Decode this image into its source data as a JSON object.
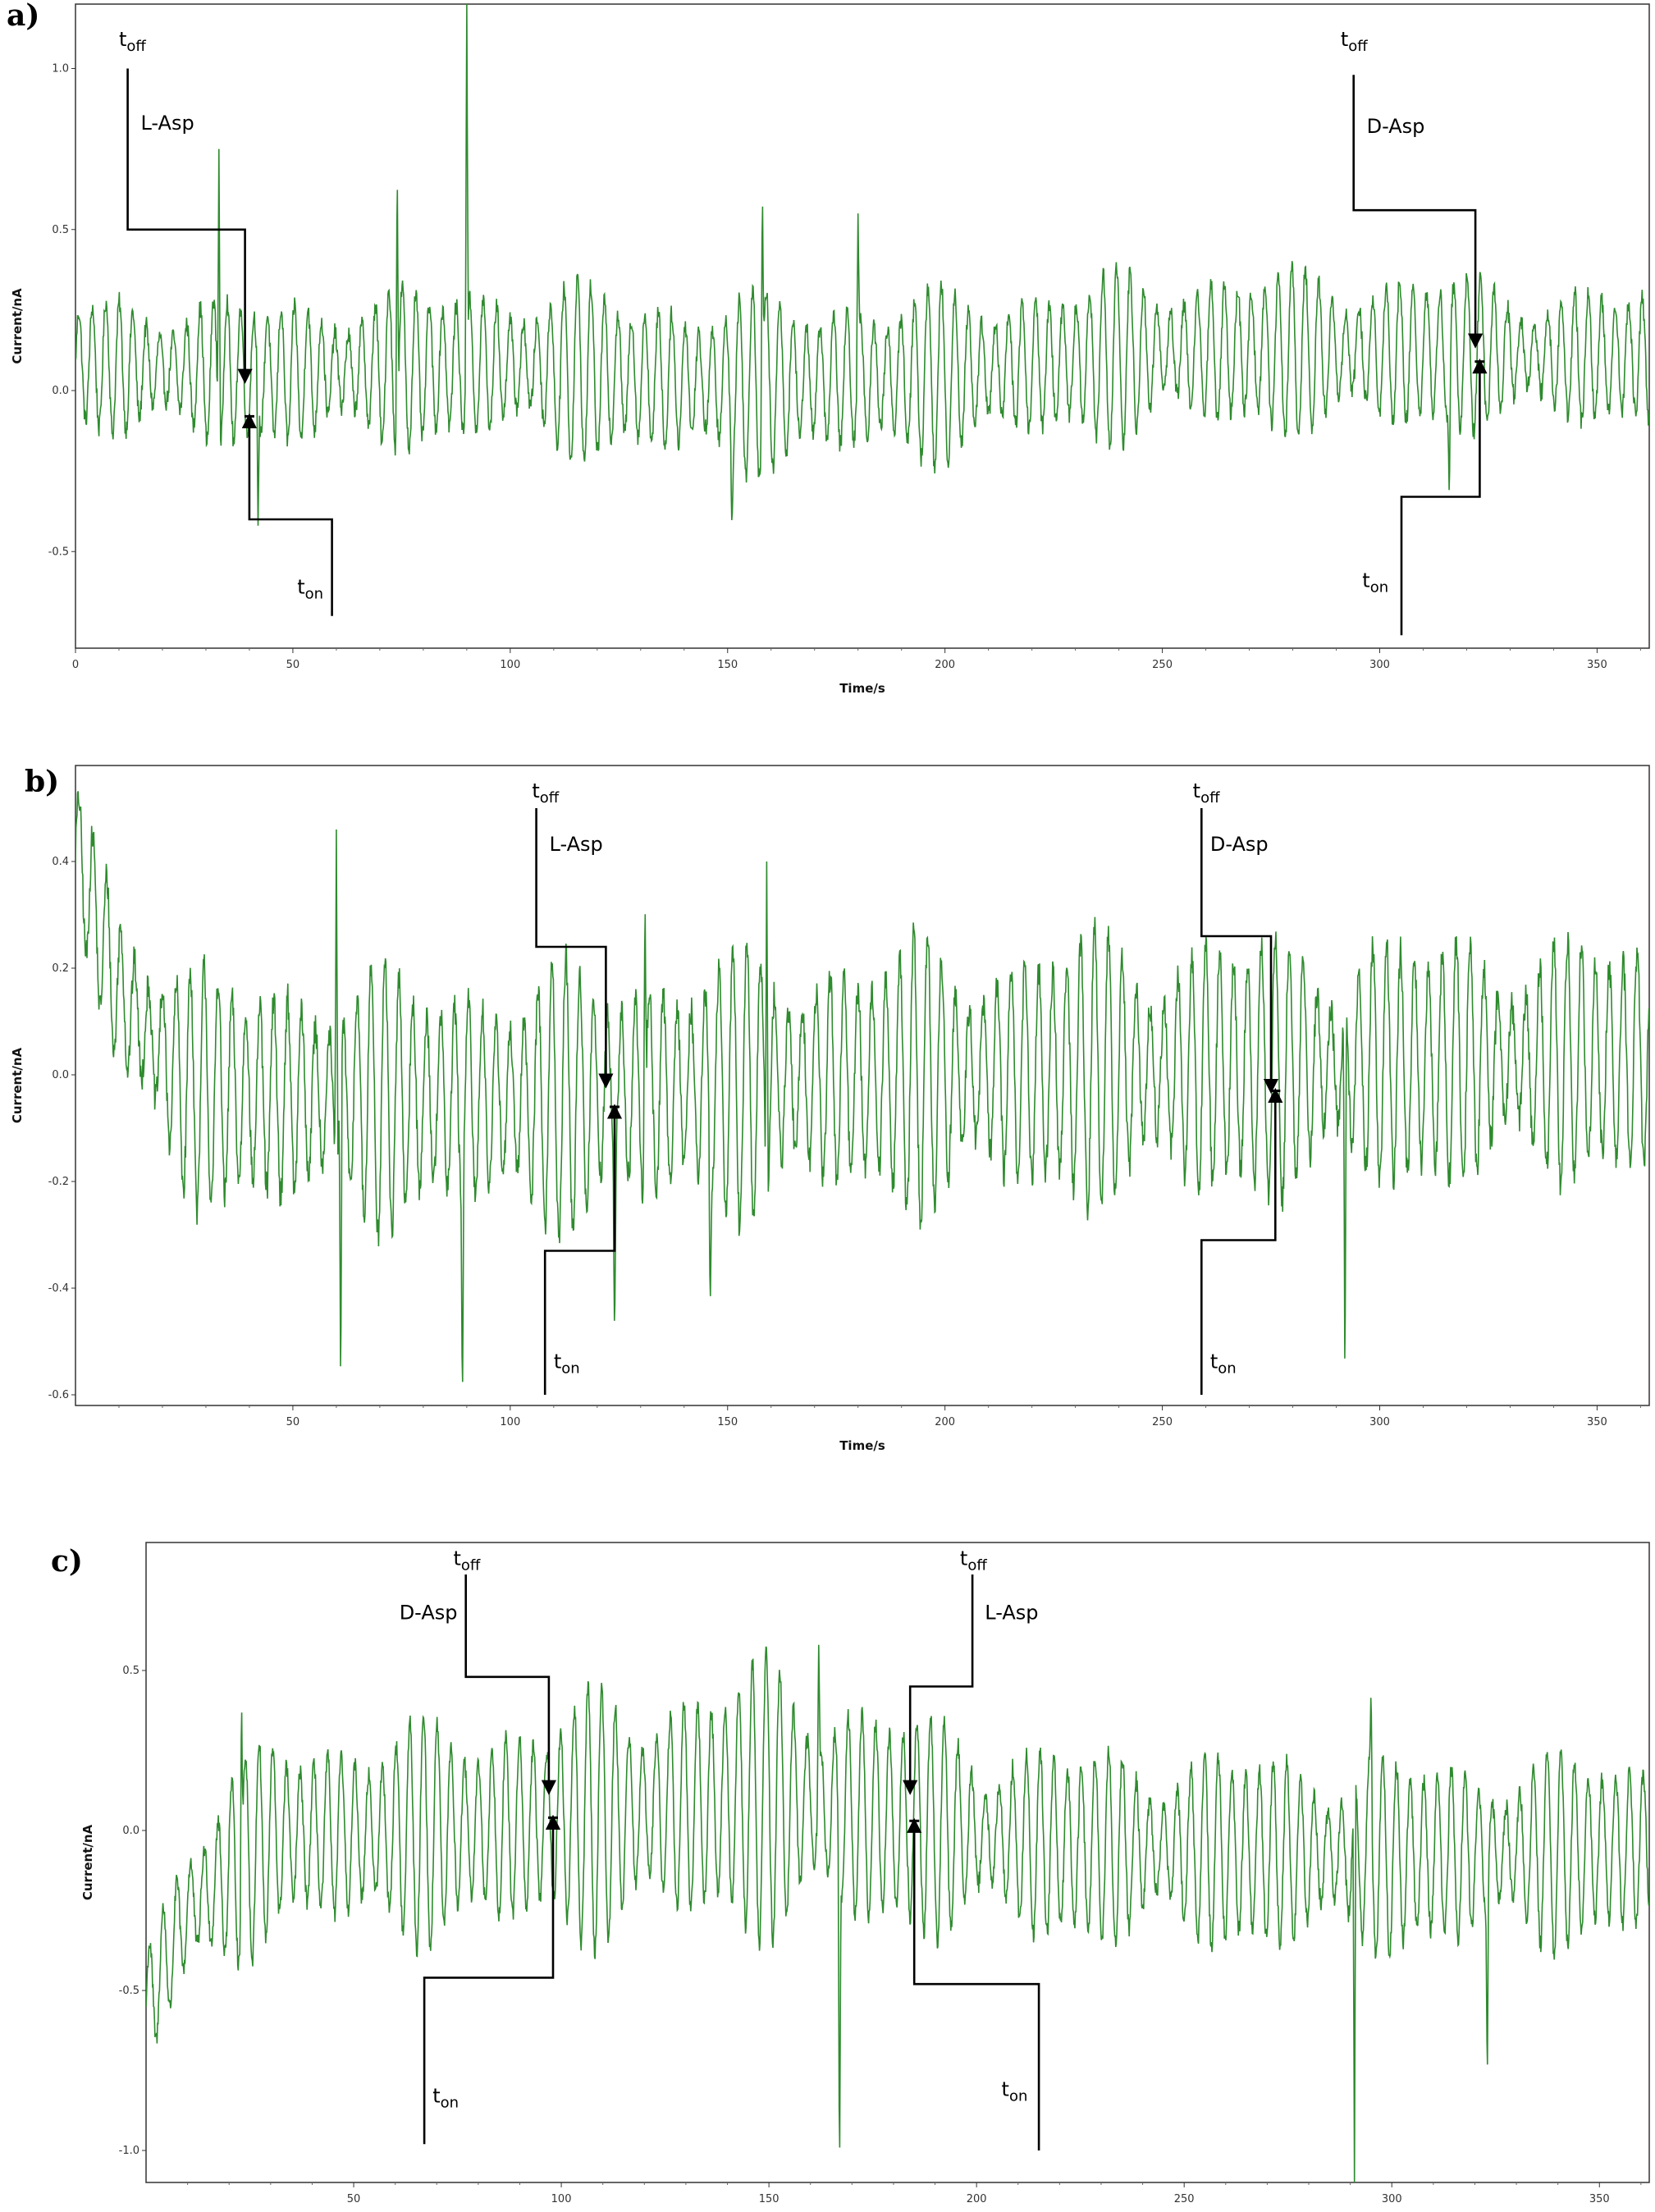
{
  "chart_data": [
    {
      "panel": "a)",
      "type": "line",
      "xlabel": "Time/s",
      "ylabel": "Current/nA",
      "xlim": [
        0,
        362
      ],
      "ylim": [
        -0.8,
        1.2
      ],
      "xticks": [
        "0",
        "50",
        "100",
        "150",
        "200",
        "250",
        "300",
        "350"
      ],
      "xtick_values": [
        0,
        50,
        100,
        150,
        200,
        250,
        300,
        350
      ],
      "yticks": [
        "1.0",
        "0.5",
        "0.0",
        "-0.5"
      ],
      "ytick_values": [
        1.0,
        0.5,
        0.0,
        -0.5
      ],
      "line_color": "#2e8b2e",
      "signal": {
        "period_s": 3.1,
        "baseline": [
          [
            0,
            0.08
          ],
          [
            40,
            0.05
          ],
          [
            100,
            0.08
          ],
          [
            150,
            0.02
          ],
          [
            200,
            0.05
          ],
          [
            250,
            0.12
          ],
          [
            300,
            0.12
          ],
          [
            362,
            0.1
          ]
        ],
        "amplitude": [
          [
            0,
            0.2
          ],
          [
            40,
            0.22
          ],
          [
            100,
            0.24
          ],
          [
            150,
            0.26
          ],
          [
            200,
            0.24
          ],
          [
            300,
            0.24
          ],
          [
            362,
            0.19
          ]
        ],
        "spikes": [
          [
            33,
            0.75
          ],
          [
            74,
            0.72
          ],
          [
            90,
            1.2
          ],
          [
            158,
            0.65
          ],
          [
            180,
            0.55
          ],
          [
            42,
            -0.42
          ],
          [
            151,
            -0.43
          ],
          [
            316,
            -0.35
          ]
        ]
      },
      "annotations": [
        {
          "label": "L-Asp",
          "toff": "t",
          "toff_sub": "off",
          "ton": "t",
          "ton_sub": "on",
          "toff_path": [
            [
              12,
              1.0
            ],
            [
              12,
              0.5
            ],
            [
              39,
              0.5
            ],
            [
              39,
              0.03
            ]
          ],
          "ton_path": [
            [
              59,
              -0.7
            ],
            [
              59,
              -0.4
            ],
            [
              40,
              -0.4
            ],
            [
              40,
              -0.08
            ]
          ],
          "toff_label_at": [
            10,
            1.07
          ],
          "name_label_at": [
            15,
            0.81
          ],
          "ton_label_at": [
            51,
            -0.63
          ]
        },
        {
          "label": "D-Asp",
          "toff": "t",
          "toff_sub": "off",
          "ton": "t",
          "ton_sub": "on",
          "toff_path": [
            [
              294,
              0.98
            ],
            [
              294,
              0.56
            ],
            [
              322,
              0.56
            ],
            [
              322,
              0.14
            ]
          ],
          "ton_path": [
            [
              305,
              -0.76
            ],
            [
              305,
              -0.33
            ],
            [
              323,
              -0.33
            ],
            [
              323,
              0.09
            ]
          ],
          "toff_label_at": [
            291,
            1.07
          ],
          "name_label_at": [
            297,
            0.8
          ],
          "ton_label_at": [
            296,
            -0.61
          ]
        }
      ]
    },
    {
      "panel": "b)",
      "type": "line",
      "xlabel": "Time/s",
      "ylabel": "Current/nA",
      "xlim": [
        0,
        362
      ],
      "ylim": [
        -0.62,
        0.58
      ],
      "xticks": [
        "50",
        "100",
        "150",
        "200",
        "250",
        "300",
        "350"
      ],
      "xtick_values": [
        50,
        100,
        150,
        200,
        250,
        300,
        350
      ],
      "yticks": [
        "0.4",
        "0.2",
        "0.0",
        "-0.2",
        "-0.4",
        "-0.6"
      ],
      "ytick_values": [
        0.4,
        0.2,
        0.0,
        -0.2,
        -0.4,
        -0.6
      ],
      "line_color": "#2e8b2e",
      "signal": {
        "period_s": 3.2,
        "baseline": [
          [
            0,
            0.42
          ],
          [
            10,
            0.15
          ],
          [
            25,
            -0.02
          ],
          [
            40,
            -0.04
          ],
          [
            100,
            -0.05
          ],
          [
            150,
            -0.02
          ],
          [
            200,
            0.0
          ],
          [
            300,
            0.02
          ],
          [
            362,
            0.03
          ]
        ],
        "amplitude": [
          [
            0,
            0.14
          ],
          [
            20,
            0.2
          ],
          [
            60,
            0.22
          ],
          [
            150,
            0.23
          ],
          [
            250,
            0.24
          ],
          [
            362,
            0.21
          ]
        ],
        "spikes": [
          [
            61,
            -0.62
          ],
          [
            89,
            -0.62
          ],
          [
            60,
            0.46
          ],
          [
            159,
            0.4
          ],
          [
            131,
            0.35
          ],
          [
            292,
            -0.62
          ],
          [
            124,
            -0.5
          ],
          [
            146,
            -0.45
          ]
        ]
      },
      "annotations": [
        {
          "label": "L-Asp",
          "toff": "t",
          "toff_sub": "off",
          "ton": "t",
          "ton_sub": "on",
          "toff_path": [
            [
              106,
              0.5
            ],
            [
              106,
              0.24
            ],
            [
              122,
              0.24
            ],
            [
              122,
              -0.02
            ]
          ],
          "ton_path": [
            [
              108,
              -0.6
            ],
            [
              108,
              -0.33
            ],
            [
              124,
              -0.33
            ],
            [
              124,
              -0.06
            ]
          ],
          "toff_label_at": [
            105,
            0.52
          ],
          "name_label_at": [
            109,
            0.42
          ],
          "ton_label_at": [
            110,
            -0.55
          ]
        },
        {
          "label": "D-Asp",
          "toff": "t",
          "toff_sub": "off",
          "ton": "t",
          "ton_sub": "on",
          "toff_path": [
            [
              259,
              0.5
            ],
            [
              259,
              0.26
            ],
            [
              275,
              0.26
            ],
            [
              275,
              -0.03
            ]
          ],
          "ton_path": [
            [
              259,
              -0.6
            ],
            [
              259,
              -0.31
            ],
            [
              276,
              -0.31
            ],
            [
              276,
              -0.03
            ]
          ],
          "toff_label_at": [
            257,
            0.52
          ],
          "name_label_at": [
            261,
            0.42
          ],
          "ton_label_at": [
            261,
            -0.55
          ]
        }
      ]
    },
    {
      "panel": "c)",
      "type": "line",
      "xlabel": "Time/s",
      "ylabel": "Current/nA",
      "xlim": [
        0,
        362
      ],
      "ylim": [
        -1.1,
        0.9
      ],
      "xticks": [
        "50",
        "100",
        "150",
        "200",
        "250",
        "300",
        "350"
      ],
      "xtick_values": [
        50,
        100,
        150,
        200,
        250,
        300,
        350
      ],
      "yticks": [
        "0.5",
        "0.0",
        "-0.5",
        "-1.0"
      ],
      "ytick_values": [
        0.5,
        0.0,
        -0.5,
        -1.0
      ],
      "line_color": "#2e8b2e",
      "signal": {
        "period_s": 3.3,
        "baseline": [
          [
            0,
            -0.55
          ],
          [
            10,
            -0.25
          ],
          [
            30,
            -0.02
          ],
          [
            80,
            0.0
          ],
          [
            150,
            0.1
          ],
          [
            170,
            0.05
          ],
          [
            220,
            -0.05
          ],
          [
            300,
            -0.08
          ],
          [
            362,
            -0.05
          ]
        ],
        "amplitude": [
          [
            0,
            0.2
          ],
          [
            20,
            0.28
          ],
          [
            80,
            0.33
          ],
          [
            150,
            0.4
          ],
          [
            200,
            0.3
          ],
          [
            362,
            0.28
          ]
        ],
        "spikes": [
          [
            167,
            -1.1
          ],
          [
            291,
            -1.1
          ],
          [
            23,
            0.43
          ],
          [
            295,
            0.45
          ],
          [
            162,
            0.58
          ],
          [
            323,
            -0.8
          ]
        ]
      },
      "annotations": [
        {
          "label": "D-Asp",
          "toff": "t",
          "toff_sub": "off",
          "ton": "t",
          "ton_sub": "on",
          "toff_path": [
            [
              77,
              0.8
            ],
            [
              77,
              0.48
            ],
            [
              97,
              0.48
            ],
            [
              97,
              0.12
            ]
          ],
          "ton_path": [
            [
              67,
              -0.98
            ],
            [
              67,
              -0.46
            ],
            [
              98,
              -0.46
            ],
            [
              98,
              0.04
            ]
          ],
          "toff_label_at": [
            74,
            0.83
          ],
          "name_label_at": [
            61,
            0.66
          ],
          "ton_label_at": [
            69,
            -0.85
          ]
        },
        {
          "label": "L-Asp",
          "toff": "t",
          "toff_sub": "off",
          "ton": "t",
          "ton_sub": "on",
          "toff_path": [
            [
              199,
              0.8
            ],
            [
              199,
              0.45
            ],
            [
              184,
              0.45
            ],
            [
              184,
              0.12
            ]
          ],
          "ton_path": [
            [
              215,
              -1.0
            ],
            [
              215,
              -0.48
            ],
            [
              185,
              -0.48
            ],
            [
              185,
              0.03
            ]
          ],
          "toff_label_at": [
            196,
            0.83
          ],
          "name_label_at": [
            202,
            0.66
          ],
          "ton_label_at": [
            206,
            -0.83
          ]
        }
      ]
    }
  ]
}
